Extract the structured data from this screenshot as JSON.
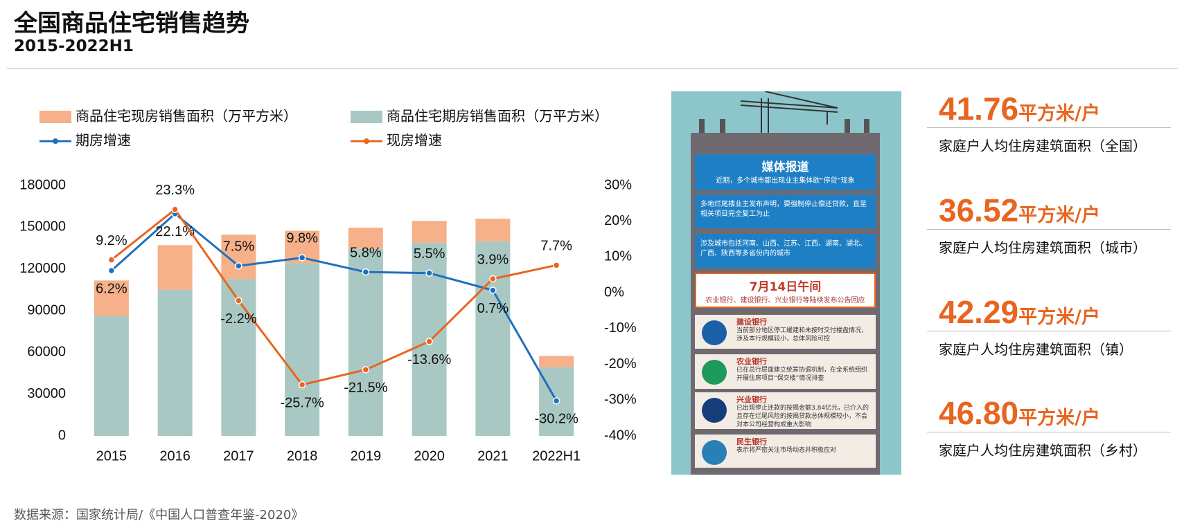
{
  "header": {
    "title": "全国商品住宅销售趋势",
    "subtitle": "2015-2022H1"
  },
  "chart_data": {
    "type": "bar",
    "categories": [
      "2015",
      "2016",
      "2017",
      "2018",
      "2019",
      "2020",
      "2021",
      "2022H1"
    ],
    "series": [
      {
        "name": "商品住宅现房销售面积（万平方米）",
        "type": "bar",
        "color": "#f6b08a",
        "values": [
          25500,
          32000,
          32000,
          23300,
          15200,
          15700,
          16300,
          8200
        ]
      },
      {
        "name": "商品住宅期房销售面积（万平方米）",
        "type": "bar",
        "color": "#a9c8c3",
        "values": [
          86200,
          105100,
          112700,
          124100,
          134400,
          138800,
          139800,
          49300
        ]
      },
      {
        "name": "期房增速",
        "type": "line",
        "axis": "y2",
        "color": "#1f6fc0",
        "values": [
          6.2,
          22.1,
          7.5,
          9.8,
          5.8,
          5.5,
          0.7,
          -30.2
        ],
        "value_labels": [
          "6.2%",
          "22.1%",
          "7.5%",
          "9.8%",
          "5.8%",
          "5.5%",
          "0.7%",
          "-30.2%"
        ]
      },
      {
        "name": "现房增速",
        "type": "line",
        "axis": "y2",
        "color": "#e8651f",
        "values": [
          9.2,
          23.3,
          -2.2,
          -25.7,
          -21.5,
          -13.6,
          3.9,
          7.7
        ],
        "value_labels": [
          "9.2%",
          "23.3%",
          "-2.2%",
          "-25.7%",
          "-21.5%",
          "-13.6%",
          "3.9%",
          "7.7%"
        ]
      }
    ],
    "ylim": [
      0,
      180000
    ],
    "yticks": [
      0,
      30000,
      60000,
      90000,
      120000,
      150000,
      180000
    ],
    "y2lim": [
      -40,
      30
    ],
    "y2ticks": [
      {
        "value": -40,
        "label": "-40%"
      },
      {
        "value": -30,
        "label": "-30%"
      },
      {
        "value": -20,
        "label": "-20%"
      },
      {
        "value": -10,
        "label": "-10%"
      },
      {
        "value": 0,
        "label": "0%"
      },
      {
        "value": 10,
        "label": "10%"
      },
      {
        "value": 20,
        "label": "20%"
      },
      {
        "value": 30,
        "label": "30%"
      }
    ],
    "grid": false,
    "legend": "top"
  },
  "infographic": {
    "title": "媒体报道",
    "subtitle": "近期，多个城市都出现业主集体欲“停贷”现象",
    "notes": [
      "多地烂尾楼业主发布声明，要强制停止偿还贷款，直至相关项目完全复工为止",
      "涉及城市包括河南、山西、江苏、江西、湖南、湖北、广西、陕西等多省份内的城市"
    ],
    "date": "7月14日午间",
    "date_note": "农业银行、建设银行、兴业银行等陆续发布公告回应",
    "banks": [
      {
        "name": "建设银行",
        "text": "当前部分地区停工缓建和未按时交付楼盘情况，涉及本行规模较小，总体风险可控"
      },
      {
        "name": "农业银行",
        "text": "已在总行层面建立统筹协调机制，在全系统组织开展住房项目“保交楼”情况排查"
      },
      {
        "name": "兴业银行",
        "text": "已出现停止还款的按揭金额3.84亿元，已介入的且存在烂尾风险的按揭贷款总体规模较小，不会对本公司经营构成重大影响"
      },
      {
        "name": "民生银行",
        "text": "表示将严密关注市场动态并积极应对"
      }
    ]
  },
  "stats": [
    {
      "value": "41.76",
      "unit": "平方米/户",
      "label": "家庭户人均住房建筑面积（全国）"
    },
    {
      "value": "36.52",
      "unit": "平方米/户",
      "label": "家庭户人均住房建筑面积（城市）"
    },
    {
      "value": "42.29",
      "unit": "平方米/户",
      "label": "家庭户人均住房建筑面积（镇）"
    },
    {
      "value": "46.80",
      "unit": "平方米/户",
      "label": "家庭户人均住房建筑面积（乡村）"
    }
  ],
  "source": "数据来源：国家统计局/《中国人口普查年鉴-2020》"
}
